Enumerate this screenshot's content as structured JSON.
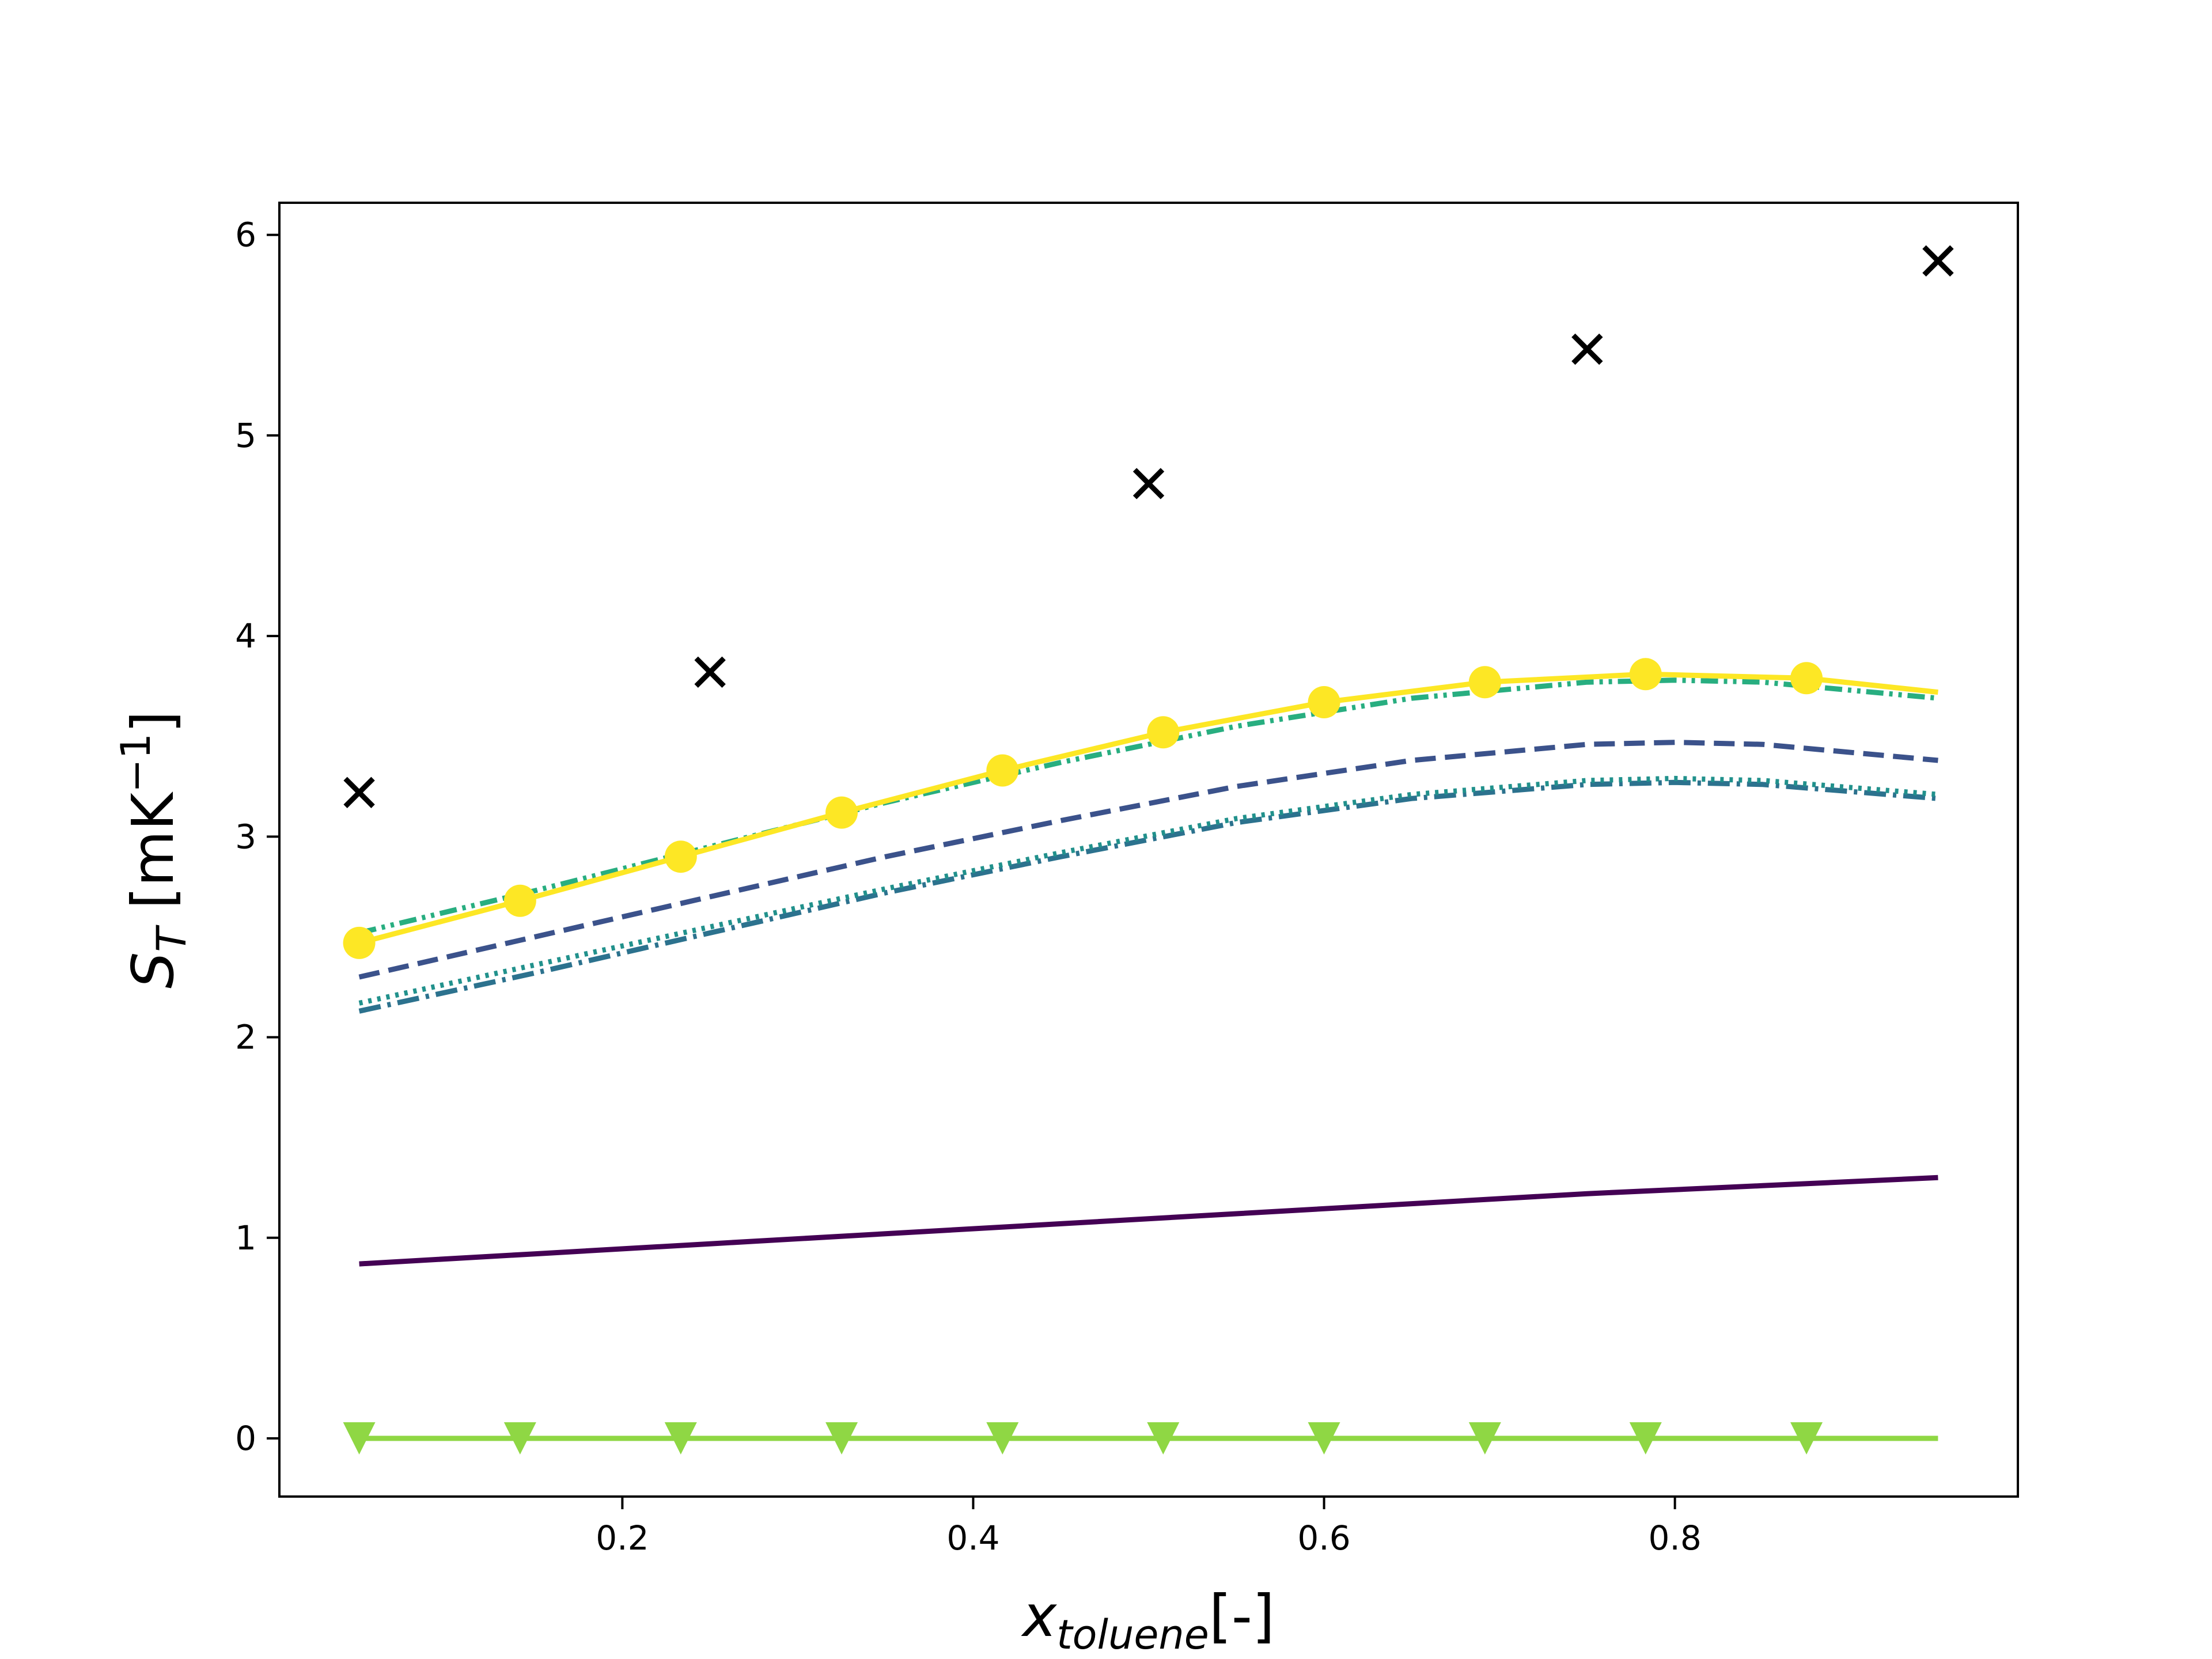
{
  "chart_data": {
    "type": "line",
    "xlabel": {
      "main": "x",
      "sub": "toluene",
      "unit": "[-]"
    },
    "ylabel": {
      "main": "S",
      "sub": "T",
      "unit_pre": " [mK",
      "unit_sup": "−1",
      "unit_post": "]"
    },
    "xlim": [
      0.0045,
      0.9955
    ],
    "ylim": [
      -0.29,
      6.16
    ],
    "x_ticks": [
      0.2,
      0.4,
      0.6,
      0.8
    ],
    "x_tick_labels": [
      "0.2",
      "0.4",
      "0.6",
      "0.8"
    ],
    "y_ticks": [
      0,
      1,
      2,
      3,
      4,
      5,
      6
    ],
    "y_tick_labels": [
      "0",
      "1",
      "2",
      "3",
      "4",
      "5",
      "6"
    ],
    "grid": false,
    "legend": "none",
    "series": [
      {
        "color": "#440154",
        "style": "solid",
        "x": [
          0.05,
          0.15,
          0.25,
          0.35,
          0.45,
          0.55,
          0.65,
          0.75,
          0.85,
          0.95
        ],
        "y": [
          0.87,
          0.92,
          0.97,
          1.02,
          1.07,
          1.12,
          1.17,
          1.22,
          1.26,
          1.3
        ]
      },
      {
        "color": "#3b528b",
        "style": "dashed",
        "x": [
          0.05,
          0.15,
          0.25,
          0.35,
          0.45,
          0.55,
          0.65,
          0.75,
          0.8,
          0.85,
          0.95
        ],
        "y": [
          2.3,
          2.5,
          2.7,
          2.9,
          3.08,
          3.25,
          3.38,
          3.46,
          3.47,
          3.46,
          3.38
        ]
      },
      {
        "color": "#2c728e",
        "style": "dashdot",
        "x": [
          0.05,
          0.15,
          0.25,
          0.35,
          0.45,
          0.55,
          0.65,
          0.75,
          0.8,
          0.85,
          0.95
        ],
        "y": [
          2.13,
          2.32,
          2.52,
          2.72,
          2.9,
          3.07,
          3.19,
          3.26,
          3.27,
          3.26,
          3.19
        ]
      },
      {
        "color": "#21918c",
        "style": "dotted",
        "x": [
          0.05,
          0.15,
          0.25,
          0.35,
          0.45,
          0.55,
          0.65,
          0.75,
          0.8,
          0.85,
          0.95
        ],
        "y": [
          2.17,
          2.36,
          2.55,
          2.74,
          2.92,
          3.09,
          3.21,
          3.28,
          3.29,
          3.28,
          3.21
        ]
      },
      {
        "color": "#28ae80",
        "style": "dashdotdot",
        "x": [
          0.05,
          0.15,
          0.25,
          0.35,
          0.45,
          0.55,
          0.65,
          0.75,
          0.8,
          0.85,
          0.95
        ],
        "y": [
          2.52,
          2.73,
          2.95,
          3.17,
          3.37,
          3.55,
          3.69,
          3.77,
          3.78,
          3.77,
          3.69
        ]
      },
      {
        "color": "#8fd744",
        "style": "solid",
        "marker": "triangle-down",
        "x": [
          0.05,
          0.1417,
          0.2333,
          0.325,
          0.4167,
          0.5083,
          0.6,
          0.6917,
          0.7833,
          0.875,
          0.95
        ],
        "y": [
          0,
          0,
          0,
          0,
          0,
          0,
          0,
          0,
          0,
          0,
          0
        ],
        "marker_x": [
          0.05,
          0.1417,
          0.2333,
          0.325,
          0.4167,
          0.5083,
          0.6,
          0.6917,
          0.7833,
          0.875
        ],
        "marker_y": [
          0,
          0,
          0,
          0,
          0,
          0,
          0,
          0,
          0,
          0
        ]
      },
      {
        "color": "#fde725",
        "style": "solid",
        "marker": "circle",
        "x": [
          0.05,
          0.1417,
          0.2333,
          0.325,
          0.4167,
          0.5083,
          0.6,
          0.6917,
          0.7833,
          0.875,
          0.95
        ],
        "y": [
          2.47,
          2.68,
          2.9,
          3.12,
          3.33,
          3.52,
          3.67,
          3.77,
          3.81,
          3.79,
          3.72
        ],
        "marker_x": [
          0.05,
          0.1417,
          0.2333,
          0.325,
          0.4167,
          0.5083,
          0.6,
          0.6917,
          0.7833,
          0.875
        ],
        "marker_y": [
          2.47,
          2.68,
          2.9,
          3.12,
          3.33,
          3.52,
          3.67,
          3.77,
          3.81,
          3.79
        ]
      }
    ],
    "scatter": {
      "color": "#000000",
      "marker": "x",
      "x": [
        0.05,
        0.25,
        0.5,
        0.75,
        0.95
      ],
      "y": [
        3.22,
        3.82,
        4.76,
        5.43,
        5.87
      ]
    }
  }
}
